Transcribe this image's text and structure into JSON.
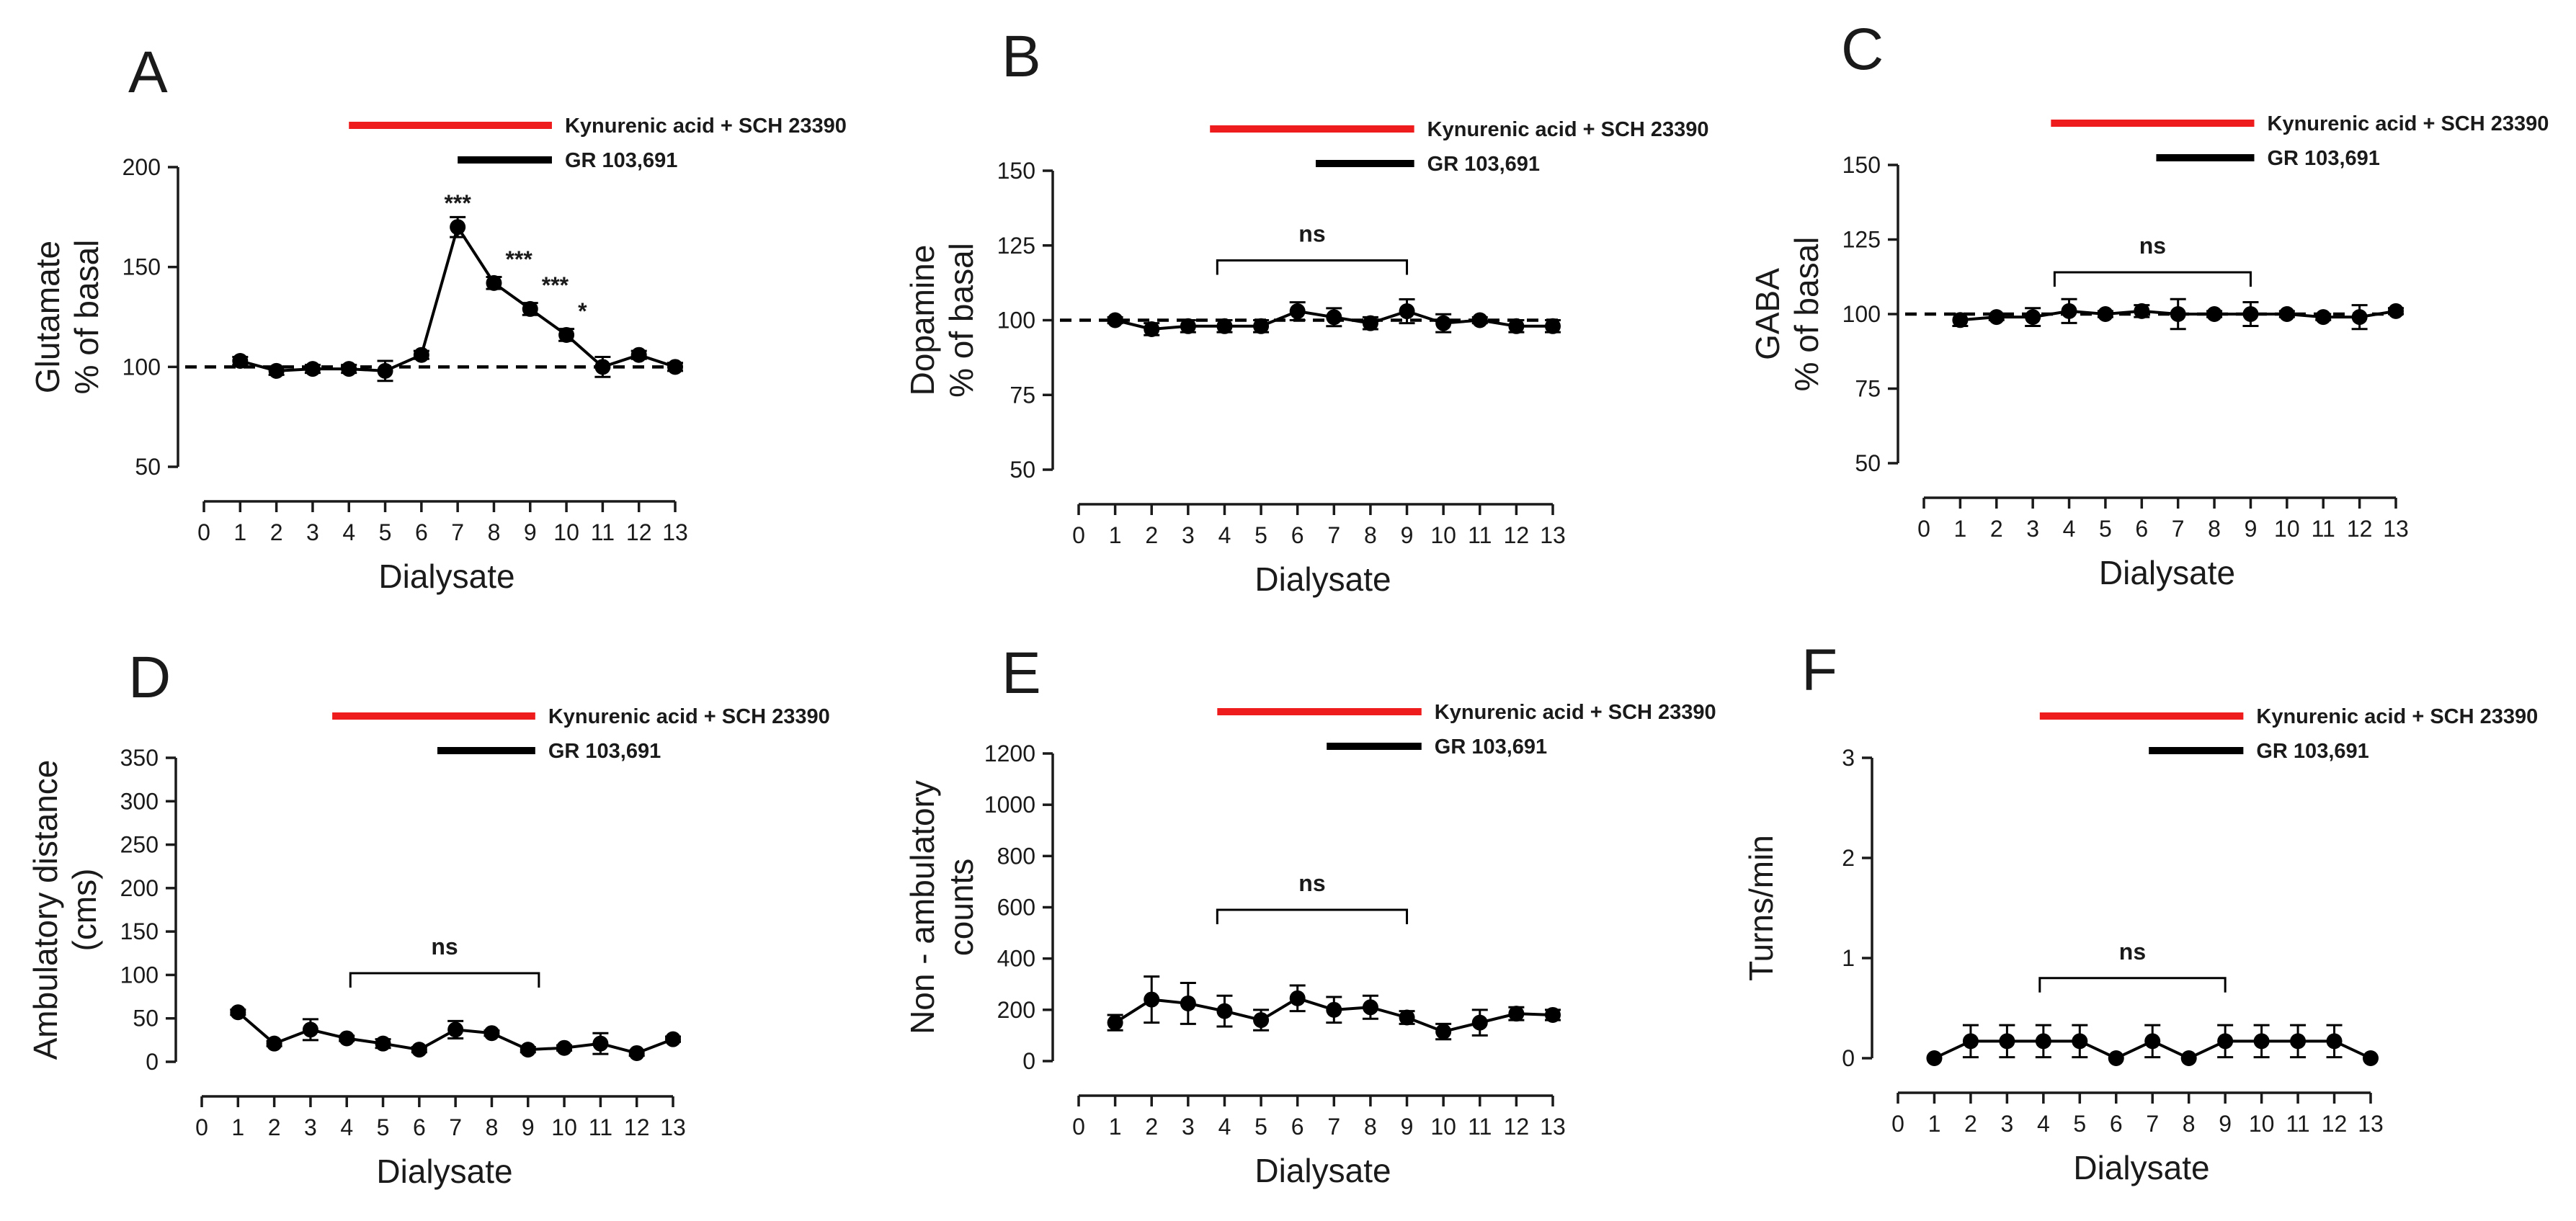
{
  "chart_data": [
    {
      "type": "line",
      "panel": "A",
      "title": "",
      "xlabel": "Dialysate",
      "ylabel_lines": [
        "Glutamate",
        "% of basal"
      ],
      "x": [
        1,
        2,
        3,
        4,
        5,
        6,
        7,
        8,
        9,
        10,
        11,
        12,
        13
      ],
      "values": [
        103,
        98,
        99,
        99,
        98,
        106,
        170,
        142,
        129,
        116,
        100,
        106,
        100
      ],
      "errors": [
        2,
        2,
        2,
        2,
        5,
        2,
        5,
        3,
        3,
        3,
        5,
        2,
        2
      ],
      "xlim": [
        0,
        13
      ],
      "ylim": [
        50,
        200
      ],
      "xticks": [
        "0",
        "1",
        "2",
        "3",
        "4",
        "5",
        "6",
        "7",
        "8",
        "9",
        "10",
        "11",
        "12",
        "13"
      ],
      "yticks": [
        {
          "value": 50,
          "label": "50"
        },
        {
          "value": 100,
          "label": "100"
        },
        {
          "value": 150,
          "label": "150"
        },
        {
          "value": 200,
          "label": "200"
        }
      ],
      "baseline": 100,
      "legend": {
        "red_label": "Kynurenic acid + SCH 23390",
        "red_color": "#ee1c1c",
        "red_range": [
          4.0,
          9.6
        ],
        "black_label": "GR 103,691",
        "black_color": "#000000",
        "black_range": [
          7.0,
          9.6
        ]
      },
      "annotations": [
        {
          "x": 7,
          "y": 170,
          "text": "***"
        },
        {
          "x": 8,
          "y": 142,
          "text": "***"
        },
        {
          "x": 9,
          "y": 129,
          "text": "***"
        },
        {
          "x": 10,
          "y": 116,
          "text": "*"
        }
      ]
    },
    {
      "type": "line",
      "panel": "B",
      "title": "",
      "xlabel": "Dialysate",
      "ylabel_lines": [
        "Dopamine",
        "% of basal"
      ],
      "x": [
        1,
        2,
        3,
        4,
        5,
        6,
        7,
        8,
        9,
        10,
        11,
        12,
        13
      ],
      "values": [
        100,
        97,
        98,
        98,
        98,
        103,
        101,
        99,
        103,
        99,
        100,
        98,
        98
      ],
      "errors": [
        1,
        2,
        2,
        2,
        2,
        3,
        3,
        2,
        4,
        3,
        1,
        2,
        2
      ],
      "xlim": [
        0,
        13
      ],
      "ylim": [
        50,
        150
      ],
      "xticks": [
        "0",
        "1",
        "2",
        "3",
        "4",
        "5",
        "6",
        "7",
        "8",
        "9",
        "10",
        "11",
        "12",
        "13"
      ],
      "yticks": [
        {
          "value": 50,
          "label": "50"
        },
        {
          "value": 75,
          "label": "75"
        },
        {
          "value": 100,
          "label": "100"
        },
        {
          "value": 125,
          "label": "125"
        },
        {
          "value": 150,
          "label": "150"
        }
      ],
      "baseline": 100,
      "legend": {
        "red_label": "Kynurenic acid + SCH 23390",
        "red_color": "#ee1c1c",
        "red_range": [
          3.6,
          9.2
        ],
        "black_label": "GR 103,691",
        "black_color": "#000000",
        "black_range": [
          6.5,
          9.2
        ]
      },
      "ns_bracket": {
        "x1": 3.8,
        "x2": 9.0,
        "y": 120,
        "text": "ns"
      }
    },
    {
      "type": "line",
      "panel": "C",
      "title": "",
      "xlabel": "Dialysate",
      "ylabel_lines": [
        "GABA",
        "% of basal"
      ],
      "x": [
        1,
        2,
        3,
        4,
        5,
        6,
        7,
        8,
        9,
        10,
        11,
        12,
        13
      ],
      "values": [
        98,
        99,
        99,
        101,
        100,
        101,
        100,
        100,
        100,
        100,
        99,
        99,
        101
      ],
      "errors": [
        2,
        1,
        3,
        4,
        1,
        2,
        5,
        1,
        4,
        1,
        1,
        4,
        1
      ],
      "xlim": [
        0,
        13
      ],
      "ylim": [
        50,
        150
      ],
      "xticks": [
        "0",
        "1",
        "2",
        "3",
        "4",
        "5",
        "6",
        "7",
        "8",
        "9",
        "10",
        "11",
        "12",
        "13"
      ],
      "yticks": [
        {
          "value": 50,
          "label": "50"
        },
        {
          "value": 75,
          "label": "75"
        },
        {
          "value": 100,
          "label": "100"
        },
        {
          "value": 125,
          "label": "125"
        },
        {
          "value": 150,
          "label": "150"
        }
      ],
      "baseline": 100,
      "legend": {
        "red_label": "Kynurenic acid + SCH 23390",
        "red_color": "#ee1c1c",
        "red_range": [
          3.5,
          9.1
        ],
        "black_label": "GR 103,691",
        "black_color": "#000000",
        "black_range": [
          6.4,
          9.1
        ]
      },
      "ns_bracket": {
        "x1": 3.6,
        "x2": 9.0,
        "y": 114,
        "text": "ns"
      }
    },
    {
      "type": "line",
      "panel": "D",
      "title": "",
      "xlabel": "Dialysate",
      "ylabel_lines": [
        "Ambulatory distance",
        "(cms)"
      ],
      "x": [
        1,
        2,
        3,
        4,
        5,
        6,
        7,
        8,
        9,
        10,
        11,
        12,
        13
      ],
      "values": [
        57,
        21,
        37,
        27,
        21,
        14,
        37,
        33,
        14,
        16,
        21,
        10,
        26
      ],
      "errors": [
        3,
        3,
        12,
        3,
        5,
        3,
        10,
        3,
        3,
        3,
        12,
        3,
        3
      ],
      "xlim": [
        0,
        13
      ],
      "ylim": [
        0,
        350
      ],
      "xticks": [
        "0",
        "1",
        "2",
        "3",
        "4",
        "5",
        "6",
        "7",
        "8",
        "9",
        "10",
        "11",
        "12",
        "13"
      ],
      "yticks": [
        {
          "value": 0,
          "label": "0"
        },
        {
          "value": 50,
          "label": "50"
        },
        {
          "value": 100,
          "label": "100"
        },
        {
          "value": 150,
          "label": "150"
        },
        {
          "value": 200,
          "label": "200"
        },
        {
          "value": 250,
          "label": "250"
        },
        {
          "value": 300,
          "label": "300"
        },
        {
          "value": 350,
          "label": "350"
        }
      ],
      "legend": {
        "red_label": "Kynurenic acid + SCH 23390",
        "red_color": "#ee1c1c",
        "red_range": [
          3.6,
          9.2
        ],
        "black_label": "GR 103,691",
        "black_color": "#000000",
        "black_range": [
          6.5,
          9.2
        ]
      },
      "ns_bracket": {
        "x1": 4.1,
        "x2": 9.3,
        "y": 102,
        "text": "ns"
      }
    },
    {
      "type": "line",
      "panel": "E",
      "title": "",
      "xlabel": "Dialysate",
      "ylabel_lines": [
        "Non - ambulatory",
        "counts"
      ],
      "x": [
        1,
        2,
        3,
        4,
        5,
        6,
        7,
        8,
        9,
        10,
        11,
        12,
        13
      ],
      "values": [
        150,
        240,
        225,
        195,
        160,
        245,
        200,
        210,
        170,
        115,
        150,
        185,
        180
      ],
      "errors": [
        30,
        90,
        80,
        60,
        40,
        50,
        50,
        45,
        25,
        30,
        50,
        25,
        20
      ],
      "xlim": [
        0,
        13
      ],
      "ylim": [
        0,
        1200
      ],
      "xticks": [
        "0",
        "1",
        "2",
        "3",
        "4",
        "5",
        "6",
        "7",
        "8",
        "9",
        "10",
        "11",
        "12",
        "13"
      ],
      "yticks": [
        {
          "value": 0,
          "label": "0"
        },
        {
          "value": 200,
          "label": "200"
        },
        {
          "value": 400,
          "label": "400"
        },
        {
          "value": 600,
          "label": "600"
        },
        {
          "value": 800,
          "label": "800"
        },
        {
          "value": 1000,
          "label": "1000"
        },
        {
          "value": 1200,
          "label": "1200"
        }
      ],
      "legend": {
        "red_label": "Kynurenic acid + SCH 23390",
        "red_color": "#ee1c1c",
        "red_range": [
          3.8,
          9.4
        ],
        "black_label": "GR 103,691",
        "black_color": "#000000",
        "black_range": [
          6.8,
          9.4
        ]
      },
      "ns_bracket": {
        "x1": 3.8,
        "x2": 9.0,
        "y": 590,
        "text": "ns"
      }
    },
    {
      "type": "line",
      "panel": "F",
      "title": "",
      "xlabel": "Dialysate",
      "ylabel_lines": [
        "Turns/min"
      ],
      "x": [
        1,
        2,
        3,
        4,
        5,
        6,
        7,
        8,
        9,
        10,
        11,
        12,
        13
      ],
      "values": [
        0,
        0.17,
        0.17,
        0.17,
        0.17,
        0,
        0.17,
        0,
        0.17,
        0.17,
        0.17,
        0.17,
        0
      ],
      "errors": [
        0,
        0.16,
        0.16,
        0.16,
        0.16,
        0,
        0.16,
        0,
        0.16,
        0.16,
        0.16,
        0.16,
        0
      ],
      "xlim": [
        0,
        13
      ],
      "ylim": [
        0,
        3
      ],
      "xticks": [
        "0",
        "1",
        "2",
        "3",
        "4",
        "5",
        "6",
        "7",
        "8",
        "9",
        "10",
        "11",
        "12",
        "13"
      ],
      "yticks": [
        {
          "value": 0,
          "label": "0"
        },
        {
          "value": 1,
          "label": "1"
        },
        {
          "value": 2,
          "label": "2"
        },
        {
          "value": 3,
          "label": "3"
        }
      ],
      "legend": {
        "red_label": "Kynurenic acid + SCH 23390",
        "red_color": "#ee1c1c",
        "red_range": [
          3.9,
          9.5
        ],
        "black_label": "GR 103,691",
        "black_color": "#000000",
        "black_range": [
          6.9,
          9.5
        ]
      },
      "ns_bracket": {
        "x1": 3.9,
        "x2": 9.0,
        "y": 0.8,
        "text": "ns"
      }
    }
  ]
}
